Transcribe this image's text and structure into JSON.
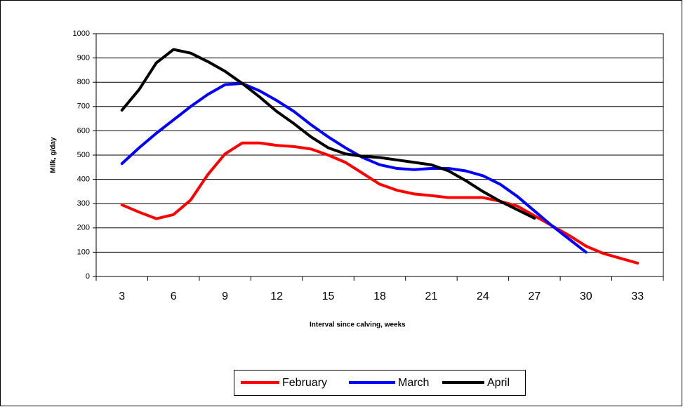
{
  "chart_data": {
    "type": "line",
    "x_label": "Interval since calving, weeks",
    "y_label": "Milk, g/day",
    "x": [
      3,
      4,
      5,
      6,
      7,
      8,
      9,
      10,
      11,
      12,
      13,
      14,
      15,
      16,
      17,
      18,
      19,
      20,
      21,
      22,
      23,
      24,
      25,
      26,
      27,
      28,
      29,
      30,
      31,
      32,
      33
    ],
    "series": [
      {
        "name": "February",
        "color": "#ff0000",
        "values": [
          295,
          265,
          238,
          255,
          315,
          420,
          505,
          550,
          550,
          540,
          535,
          525,
          500,
          470,
          425,
          380,
          355,
          340,
          333,
          325,
          325,
          325,
          310,
          290,
          250,
          210,
          170,
          125,
          95,
          75,
          55
        ]
      },
      {
        "name": "March",
        "color": "#0000ff",
        "values": [
          465,
          530,
          590,
          645,
          700,
          750,
          790,
          795,
          765,
          725,
          680,
          625,
          575,
          530,
          490,
          460,
          445,
          440,
          445,
          445,
          435,
          415,
          380,
          330,
          270,
          210,
          155,
          100,
          null,
          null,
          null
        ]
      },
      {
        "name": "April",
        "color": "#000000",
        "values": [
          685,
          770,
          880,
          935,
          920,
          885,
          845,
          795,
          740,
          680,
          630,
          575,
          530,
          505,
          495,
          490,
          480,
          470,
          460,
          435,
          395,
          350,
          310,
          275,
          240,
          null,
          null,
          null,
          null,
          null,
          null
        ]
      }
    ],
    "xlim": [
      1.5,
      34.5
    ],
    "xticks": [
      3,
      6,
      9,
      12,
      15,
      18,
      21,
      24,
      27,
      30,
      33
    ],
    "ylim": [
      0,
      1000
    ],
    "yticks": [
      0,
      100,
      200,
      300,
      400,
      500,
      600,
      700,
      800,
      900,
      1000
    ],
    "grid": true,
    "legend": "bottom"
  }
}
